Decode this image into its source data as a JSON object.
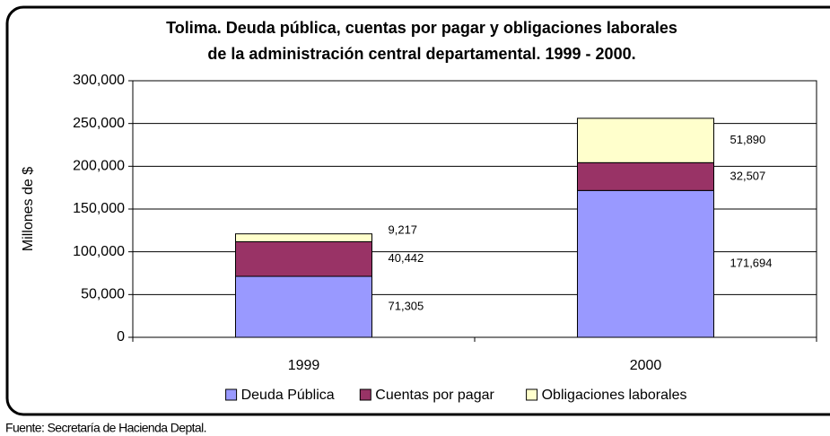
{
  "chart_data": {
    "type": "stacked_bar",
    "title": [
      "Tolima. Deuda pública, cuentas por pagar y obligaciones laborales",
      "de la administración central departamental. 1999 - 2000."
    ],
    "y_label": "Millones de $",
    "categories": [
      "1999",
      "2000"
    ],
    "series": [
      {
        "name": "Deuda Pública",
        "color": "#9999ff",
        "values": [
          71305,
          171694
        ],
        "value_labels": [
          "71,305",
          "171,694"
        ]
      },
      {
        "name": "Cuentas por pagar",
        "color": "#993366",
        "values": [
          40442,
          32507
        ],
        "value_labels": [
          "40,442",
          "32,507"
        ]
      },
      {
        "name": "Obligaciones laborales",
        "color": "#ffffcc",
        "values": [
          9217,
          51890
        ],
        "value_labels": [
          "9,217",
          "51,890"
        ]
      }
    ],
    "ylim": [
      0,
      300000
    ],
    "yticks": [
      0,
      {
        "value": 50000,
        "label": "50,000"
      },
      {
        "value": 100000,
        "label": "100,000"
      },
      {
        "value": 150000,
        "label": "150,000"
      },
      {
        "value": 200000,
        "label": "200,000"
      },
      {
        "value": 250000,
        "label": "250,000"
      },
      {
        "value": 300000,
        "label": "300,000"
      }
    ],
    "grid": true,
    "legend": "bottom",
    "source": "Fuente: Secretaría de Hacienda Deptal."
  }
}
